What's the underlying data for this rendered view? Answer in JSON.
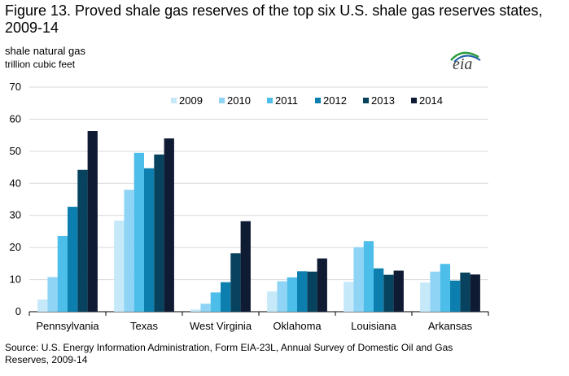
{
  "title": "Figure 13. Proved shale gas reserves of the top six U.S. shale gas reserves states, 2009-14",
  "unit_line1": "shale natural gas",
  "unit_line2": "trillion cubic feet",
  "logo_text": "eia",
  "source": "Source: U.S. Energy Information Administration, Form EIA-23L, Annual Survey of Domestic Oil and Gas Reserves, 2009-14",
  "chart_data": {
    "type": "bar",
    "title": "Figure 13. Proved shale gas reserves of the top six U.S. shale gas reserves states, 2009-14",
    "ylabel": "shale natural gas trillion cubic feet",
    "xlabel": "",
    "ylim": [
      0,
      70
    ],
    "yticks": [
      0,
      10,
      20,
      30,
      40,
      50,
      60,
      70
    ],
    "grid": true,
    "legend_position": "top-right",
    "categories": [
      "Pennsylvania",
      "Texas",
      "West Virginia",
      "Oklahoma",
      "Louisiana",
      "Arkansas"
    ],
    "series": [
      {
        "name": "2009",
        "color": "#c6e9fa",
        "values": [
          3.8,
          28.4,
          0.7,
          6.3,
          9.3,
          9.1
        ]
      },
      {
        "name": "2010",
        "color": "#8fd4f5",
        "values": [
          10.8,
          38.0,
          2.5,
          9.5,
          20.1,
          12.5
        ]
      },
      {
        "name": "2011",
        "color": "#4dbde9",
        "values": [
          23.6,
          49.5,
          6.0,
          10.7,
          22.0,
          14.9
        ]
      },
      {
        "name": "2012",
        "color": "#0d7fae",
        "values": [
          32.7,
          44.7,
          9.2,
          12.6,
          13.5,
          9.7
        ]
      },
      {
        "name": "2013",
        "color": "#07435e",
        "values": [
          44.2,
          49.0,
          18.2,
          12.5,
          11.5,
          12.2
        ]
      },
      {
        "name": "2014",
        "color": "#0e1b33",
        "values": [
          56.3,
          54.0,
          28.2,
          16.6,
          12.8,
          11.6
        ]
      }
    ]
  }
}
